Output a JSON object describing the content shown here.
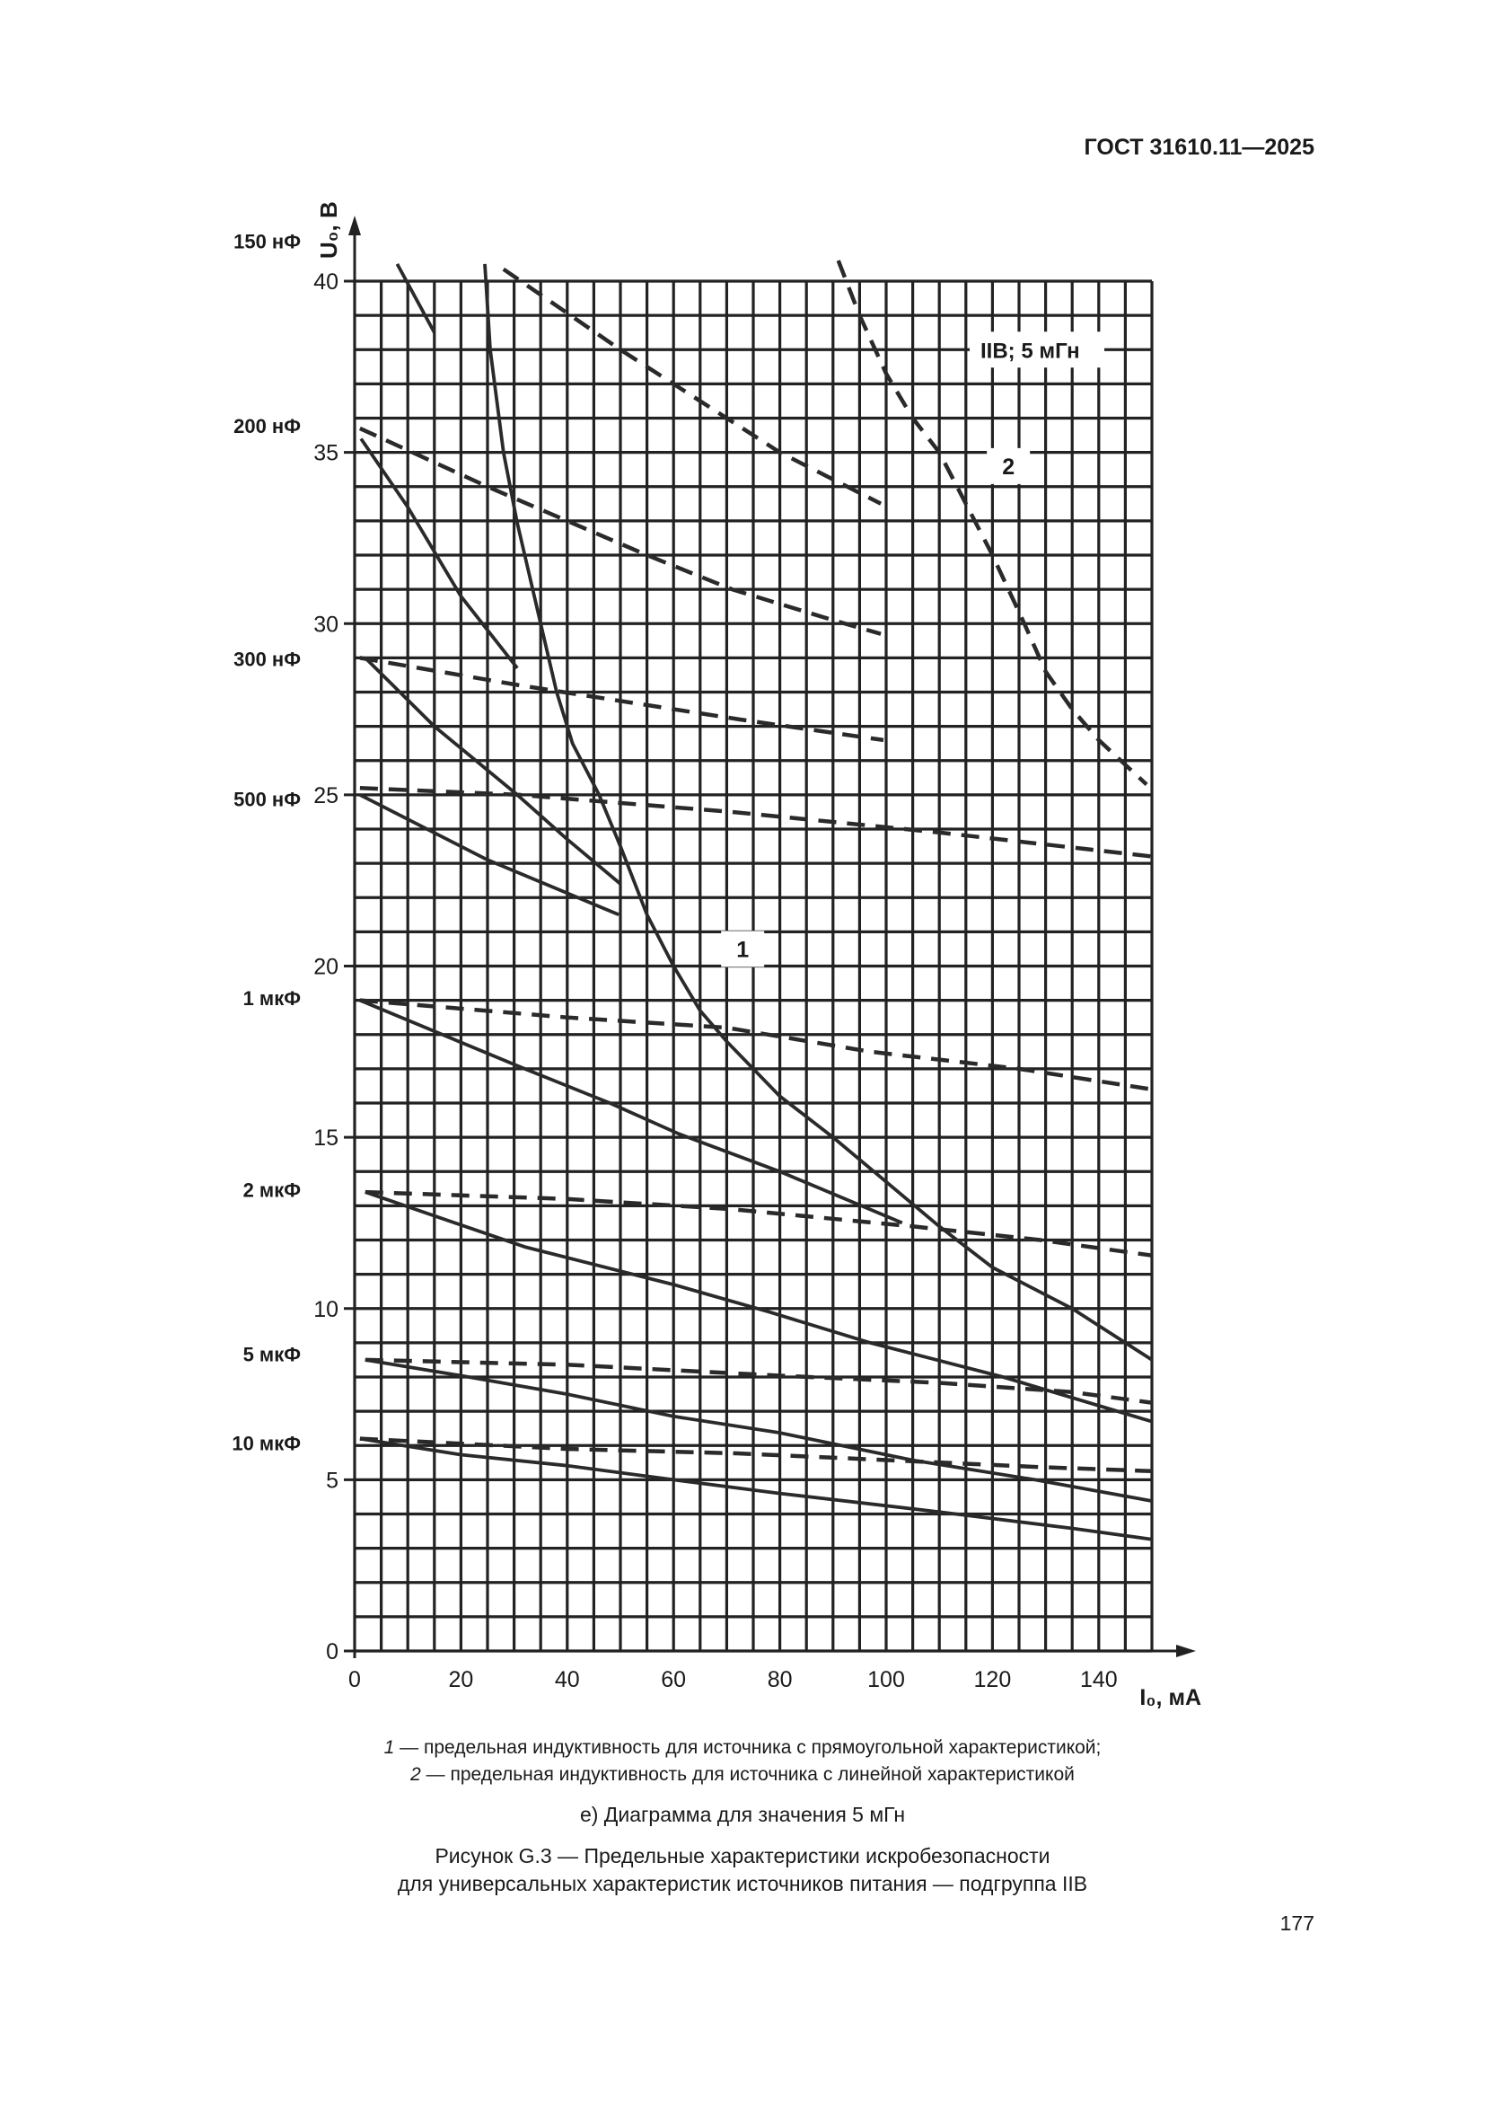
{
  "header": {
    "doc_id": "ГОСТ 31610.11—2025"
  },
  "captions": {
    "legend_1_num": "1",
    "legend_1_text": " — предельная индуктивность для источника с прямоугольной характеристикой;",
    "legend_2_num": "2",
    "legend_2_text": " — предельная индуктивность для источника с линейной характеристикой",
    "subfigure": "е) Диаграмма для значения 5 мГн",
    "figure_line1": "Рисунок G.3 — Предельные характеристики искробезопасности",
    "figure_line2": "для универсальных характеристик источников питания — подгруппа IIB"
  },
  "page_number": "177",
  "chart_data": {
    "type": "line",
    "xlabel": "I₀, мА",
    "ylabel": "U₀, В",
    "xlim": [
      0,
      150
    ],
    "ylim": [
      0,
      40
    ],
    "x_ticks": [
      0,
      20,
      40,
      60,
      80,
      100,
      120,
      140
    ],
    "y_ticks": [
      0,
      5,
      10,
      15,
      20,
      25,
      30,
      35,
      40
    ],
    "grid": {
      "on": true,
      "x_step": 5,
      "y_step": 1
    },
    "annotation_box": "IIB; 5 мГн",
    "curve_labels": [
      "1",
      "2"
    ],
    "capacitance_labels": [
      {
        "text": "150 нФ",
        "y": 41.2
      },
      {
        "text": "200 нФ",
        "y": 35.8
      },
      {
        "text": "300 нФ",
        "y": 29.0
      },
      {
        "text": "500 нФ",
        "y": 24.9
      },
      {
        "text": "1 мкФ",
        "y": 19.1
      },
      {
        "text": "2 мкФ",
        "y": 13.5
      },
      {
        "text": "5 мкФ",
        "y": 8.7
      },
      {
        "text": "10 мкФ",
        "y": 6.1
      }
    ],
    "series": [
      {
        "name": "1",
        "style": "solid",
        "points": [
          [
            24.5,
            40.5
          ],
          [
            25.5,
            38
          ],
          [
            28,
            35
          ],
          [
            30.5,
            33
          ],
          [
            35,
            30
          ],
          [
            38,
            28
          ],
          [
            41,
            26.5
          ],
          [
            46,
            25
          ],
          [
            50,
            23.5
          ],
          [
            55,
            21.5
          ],
          [
            60,
            20
          ],
          [
            65,
            18.7
          ],
          [
            70,
            17.8
          ],
          [
            75,
            17
          ],
          [
            80,
            16.2
          ],
          [
            90,
            15
          ],
          [
            100,
            13.7
          ],
          [
            110,
            12.4
          ],
          [
            120,
            11.2
          ],
          [
            135,
            10
          ],
          [
            150,
            8.5
          ]
        ]
      },
      {
        "name": "2",
        "style": "dashed",
        "points": [
          [
            91,
            40.6
          ],
          [
            95,
            39
          ],
          [
            100,
            37.3
          ],
          [
            105,
            36
          ],
          [
            110,
            35
          ],
          [
            115,
            33.5
          ],
          [
            120,
            32
          ],
          [
            126,
            30
          ],
          [
            130,
            28.6
          ],
          [
            135,
            27.5
          ],
          [
            140,
            26.6
          ],
          [
            149,
            25.3
          ]
        ]
      },
      {
        "style": "solid",
        "group": "150 нФ",
        "points": [
          [
            8,
            40.5
          ],
          [
            15,
            38.5
          ]
        ]
      },
      {
        "style": "dashed",
        "group": "150 нФ",
        "points": [
          [
            28,
            40.35
          ],
          [
            50,
            38
          ],
          [
            80,
            35
          ],
          [
            99,
            33.5
          ]
        ]
      },
      {
        "style": "solid",
        "group": "200 нФ",
        "points": [
          [
            1.2,
            35.4
          ],
          [
            10,
            33.4
          ],
          [
            20,
            30.8
          ],
          [
            30.6,
            28.7
          ]
        ]
      },
      {
        "style": "dashed",
        "group": "200 нФ",
        "points": [
          [
            1,
            35.7
          ],
          [
            25,
            34
          ],
          [
            40,
            33
          ],
          [
            55,
            32
          ],
          [
            71,
            31
          ],
          [
            90,
            30.1
          ],
          [
            99,
            29.7
          ]
        ]
      },
      {
        "style": "solid",
        "group": "300 нФ",
        "points": [
          [
            2,
            29
          ],
          [
            15,
            27
          ],
          [
            30.6,
            25
          ],
          [
            40,
            23.7
          ],
          [
            50,
            22.4
          ]
        ]
      },
      {
        "style": "dashed",
        "group": "300 нФ",
        "points": [
          [
            1,
            29
          ],
          [
            31,
            28.2
          ],
          [
            72.5,
            27.2
          ],
          [
            99.5,
            26.6
          ]
        ]
      },
      {
        "style": "solid",
        "group": "500 нФ",
        "points": [
          [
            1,
            25
          ],
          [
            25,
            23.1
          ],
          [
            49.7,
            21.5
          ]
        ]
      },
      {
        "style": "dashed",
        "group": "500 нФ",
        "points": [
          [
            1,
            25.2
          ],
          [
            31,
            25
          ],
          [
            71,
            24.5
          ],
          [
            110,
            23.9
          ],
          [
            150,
            23.2
          ]
        ]
      },
      {
        "style": "solid",
        "group": "1 мкФ",
        "points": [
          [
            1,
            19
          ],
          [
            32,
            17
          ],
          [
            48,
            16
          ],
          [
            61,
            15.1
          ],
          [
            80,
            14
          ],
          [
            103,
            12.5
          ]
        ]
      },
      {
        "style": "dashed",
        "group": "1 мкФ",
        "points": [
          [
            1,
            19
          ],
          [
            40,
            18.5
          ],
          [
            70,
            18.2
          ],
          [
            97,
            17.5
          ],
          [
            125,
            17
          ],
          [
            150,
            16.4
          ]
        ]
      },
      {
        "style": "solid",
        "group": "2 мкФ",
        "points": [
          [
            2,
            13.4
          ],
          [
            32,
            11.8
          ],
          [
            60,
            10.7
          ],
          [
            78,
            9.9
          ],
          [
            97,
            9.0
          ],
          [
            122,
            8.0
          ],
          [
            150,
            6.7
          ]
        ]
      },
      {
        "style": "dashed",
        "group": "2 мкФ",
        "points": [
          [
            2,
            13.4
          ],
          [
            40,
            13.2
          ],
          [
            71,
            12.9
          ],
          [
            105,
            12.4
          ],
          [
            129,
            12
          ],
          [
            150,
            11.55
          ]
        ]
      },
      {
        "style": "solid",
        "group": "5 мкФ",
        "points": [
          [
            2,
            8.5
          ],
          [
            20,
            8.04
          ],
          [
            40,
            7.5
          ],
          [
            60,
            6.85
          ],
          [
            80,
            6.37
          ],
          [
            105,
            5.57
          ],
          [
            128,
            5.0
          ],
          [
            150,
            4.38
          ]
        ]
      },
      {
        "style": "dashed",
        "group": "5 мкФ",
        "points": [
          [
            2,
            8.5
          ],
          [
            40,
            8.36
          ],
          [
            80,
            8.04
          ],
          [
            110,
            7.83
          ],
          [
            135,
            7.56
          ],
          [
            150,
            7.25
          ]
        ]
      },
      {
        "style": "solid",
        "group": "10 мкФ",
        "points": [
          [
            1,
            6.2
          ],
          [
            20,
            5.73
          ],
          [
            40,
            5.41
          ],
          [
            60,
            5.0
          ],
          [
            80,
            4.6
          ],
          [
            110,
            4.06
          ],
          [
            135,
            3.58
          ],
          [
            150,
            3.26
          ]
        ]
      },
      {
        "style": "dashed",
        "group": "10 мкФ",
        "points": [
          [
            1,
            6.2
          ],
          [
            40,
            5.9
          ],
          [
            72,
            5.77
          ],
          [
            105,
            5.54
          ],
          [
            129,
            5.37
          ],
          [
            150,
            5.25
          ]
        ]
      }
    ]
  }
}
